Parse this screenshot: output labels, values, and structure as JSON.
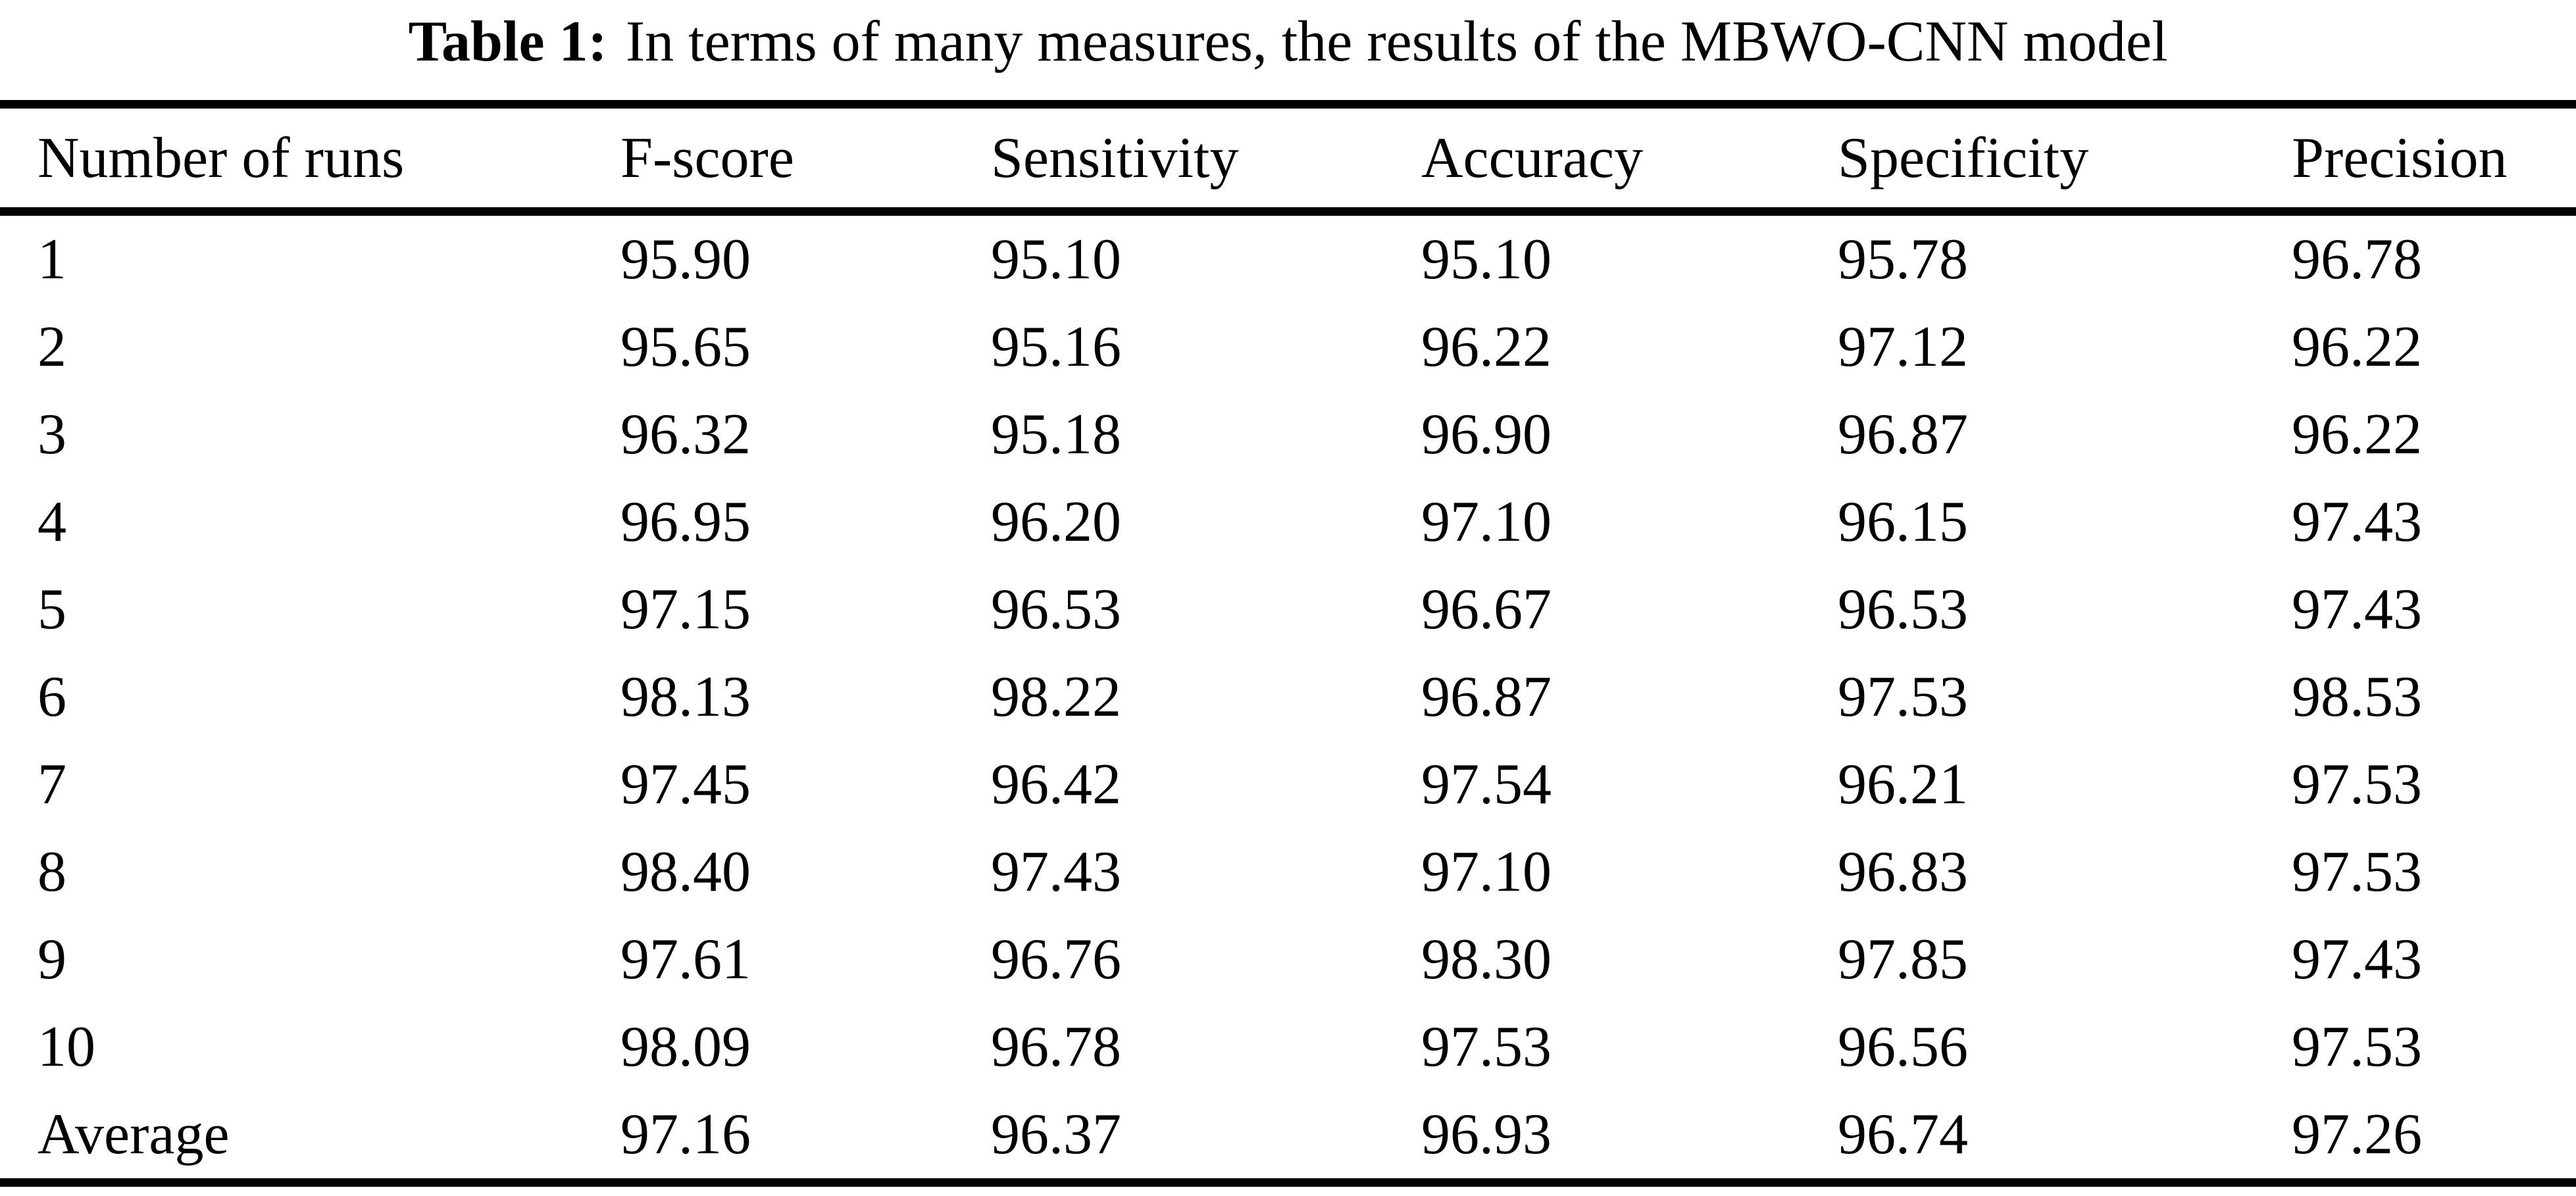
{
  "table": {
    "caption_label": "Table 1:",
    "caption_text": "In terms of many measures, the results of the MBWO-CNN model",
    "columns": [
      "Number of runs",
      "F-score",
      "Sensitivity",
      "Accuracy",
      "Specificity",
      "Precision"
    ],
    "rows": [
      [
        "1",
        "95.90",
        "95.10",
        "95.10",
        "95.78",
        "96.78"
      ],
      [
        "2",
        "95.65",
        "95.16",
        "96.22",
        "97.12",
        "96.22"
      ],
      [
        "3",
        "96.32",
        "95.18",
        "96.90",
        "96.87",
        "96.22"
      ],
      [
        "4",
        "96.95",
        "96.20",
        "97.10",
        "96.15",
        "97.43"
      ],
      [
        "5",
        "97.15",
        "96.53",
        "96.67",
        "96.53",
        "97.43"
      ],
      [
        "6",
        "98.13",
        "98.22",
        "96.87",
        "97.53",
        "98.53"
      ],
      [
        "7",
        "97.45",
        "96.42",
        "97.54",
        "96.21",
        "97.53"
      ],
      [
        "8",
        "98.40",
        "97.43",
        "97.10",
        "96.83",
        "97.53"
      ],
      [
        "9",
        "97.61",
        "96.76",
        "98.30",
        "97.85",
        "97.43"
      ],
      [
        "10",
        "98.09",
        "96.78",
        "97.53",
        "96.56",
        "97.53"
      ],
      [
        "Average",
        "97.16",
        "96.37",
        "96.93",
        "96.74",
        "97.26"
      ]
    ],
    "colors": {
      "text": "#000000",
      "background": "#ffffff",
      "rule": "#000000"
    }
  }
}
